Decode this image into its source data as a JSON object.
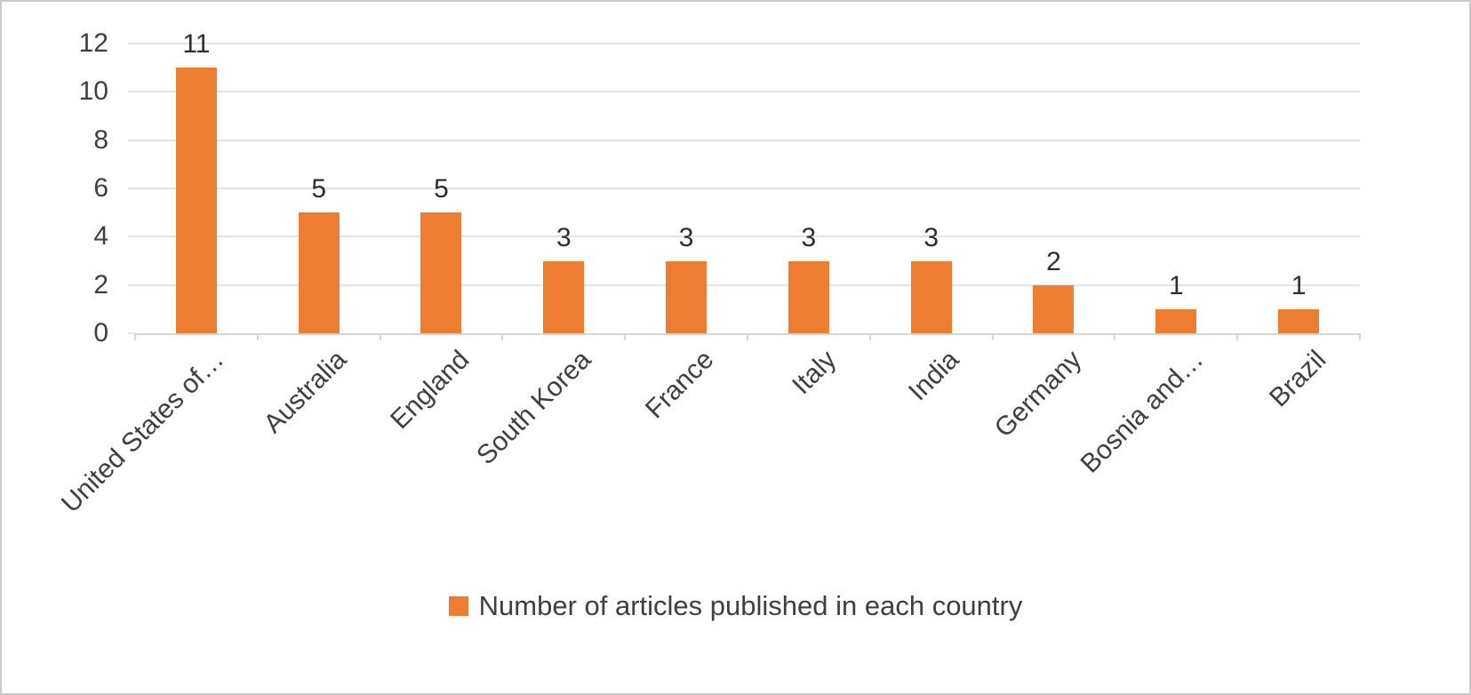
{
  "chart_data": {
    "type": "bar",
    "title": "",
    "categories": [
      "United States of…",
      "Australia",
      "England",
      "South Korea",
      "France",
      "Italy",
      "India",
      "Germany",
      "Bosnia and…",
      "Brazil"
    ],
    "values": [
      11,
      5,
      5,
      3,
      3,
      3,
      3,
      2,
      1,
      1
    ],
    "legend": "Number of articles published in each country",
    "legend_position": "bottom",
    "xlabel": "",
    "ylabel": "",
    "ylim": [
      0,
      12
    ],
    "yticks": [
      0,
      2,
      4,
      6,
      8,
      10,
      12
    ],
    "grid": true,
    "data_labels": true,
    "bar_color": "#ED7D31",
    "axis_text_color": "#3F3F3F",
    "gridline_color": "#E4E4E4"
  }
}
